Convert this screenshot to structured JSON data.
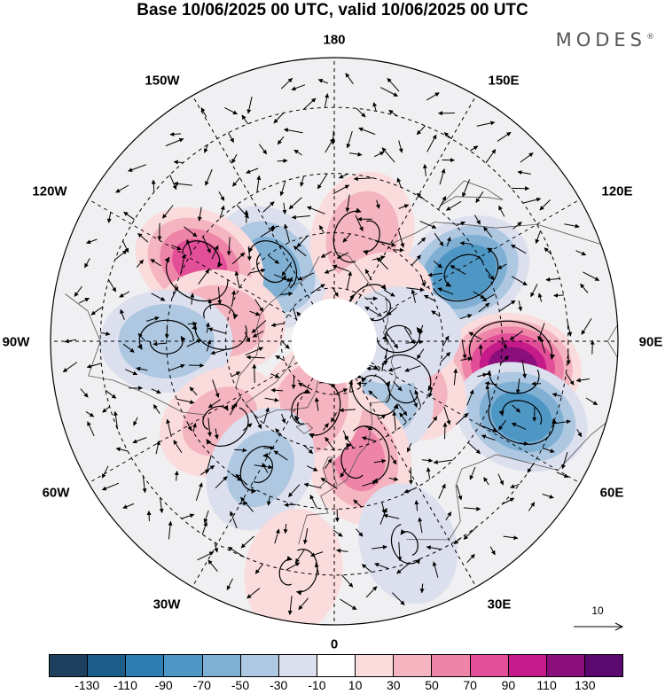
{
  "title": "Base 10/06/2025 00 UTC, valid 10/06/2025 00 UTC",
  "brand": "MODES",
  "brand_mark": "®",
  "longitude_labels": {
    "lon_180": "180",
    "lon_150e": "150E",
    "lon_120e": "120E",
    "lon_90e": "90E",
    "lon_60e": "60E",
    "lon_30e": "30E",
    "lon_0": "0",
    "lon_30w": "30W",
    "lon_60w": "60W",
    "lon_90w": "90W",
    "lon_120w": "120W",
    "lon_150w": "150W"
  },
  "reference_vector_label": "10",
  "colorbar": {
    "colors": [
      "#1f3f5f",
      "#1c5d8a",
      "#2e7db3",
      "#4e96c4",
      "#7fb0d4",
      "#aec8e2",
      "#dcdfee",
      "#ffffff",
      "#fbdcdc",
      "#f4b4c0",
      "#ee85a8",
      "#e24f98",
      "#c51b8a",
      "#8a0f7c",
      "#5a0a6e"
    ],
    "tick_labels": [
      "-130",
      "-110",
      "-90",
      "-70",
      "-50",
      "-30",
      "-10",
      "10",
      "30",
      "50",
      "70",
      "90",
      "110",
      "130"
    ]
  },
  "anomalies": [
    {
      "center": [
        -140,
        63
      ],
      "value": -55,
      "kind": "cyclone"
    },
    {
      "center": [
        165,
        60
      ],
      "value": 45,
      "kind": "anticyclone"
    },
    {
      "center": [
        -120,
        48
      ],
      "value": 75,
      "kind": "anticyclone"
    },
    {
      "center": [
        -100,
        58
      ],
      "value": 45,
      "kind": "anticyclone"
    },
    {
      "center": [
        -90,
        45
      ],
      "value": -50,
      "kind": "cyclone"
    },
    {
      "center": [
        118,
        50
      ],
      "value": -85,
      "kind": "cyclone"
    },
    {
      "center": [
        82,
        42
      ],
      "value": 115,
      "kind": "anticyclone"
    },
    {
      "center": [
        68,
        37
      ],
      "value": -80,
      "kind": "cyclone"
    },
    {
      "center": [
        58,
        67
      ],
      "value": 45,
      "kind": "anticyclone"
    },
    {
      "center": [
        40,
        72
      ],
      "value": -50,
      "kind": "cyclone"
    },
    {
      "center": [
        12,
        57
      ],
      "value": 55,
      "kind": "anticyclone"
    },
    {
      "center": [
        -20,
        70
      ],
      "value": 50,
      "kind": "anticyclone"
    },
    {
      "center": [
        -55,
        52
      ],
      "value": 35,
      "kind": "anticyclone"
    },
    {
      "center": [
        -30,
        50
      ],
      "value": -35,
      "kind": "cyclone"
    },
    {
      "center": [
        20,
        34
      ],
      "value": -20,
      "kind": "cyclone"
    },
    {
      "center": [
        -10,
        30
      ],
      "value": 25,
      "kind": "anticyclone"
    },
    {
      "center": [
        130,
        75
      ],
      "value": 25,
      "kind": "anticyclone"
    },
    {
      "center": [
        95,
        72
      ],
      "value": -25,
      "kind": "cyclone"
    }
  ]
}
